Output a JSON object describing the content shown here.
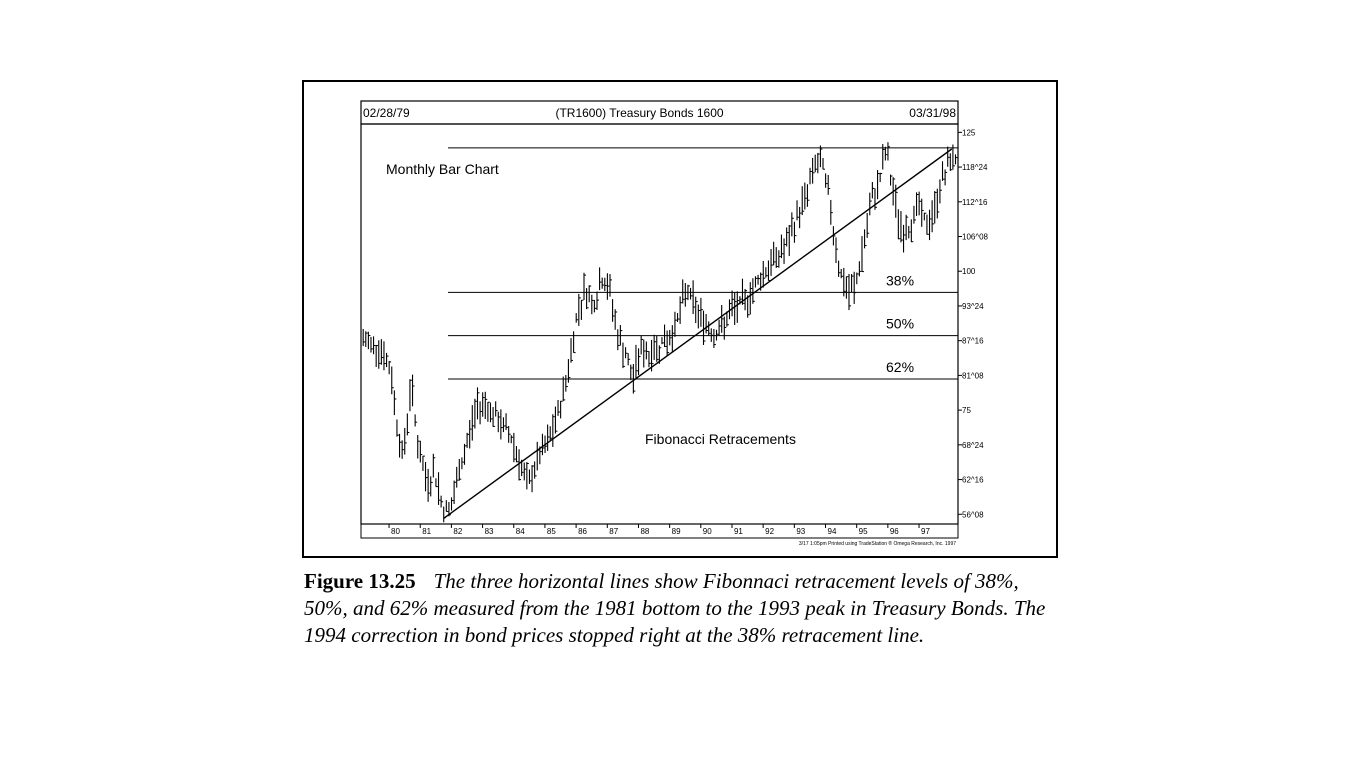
{
  "chart_data": {
    "type": "bar",
    "title": "(TR1600) Treasury Bonds 1600",
    "start_date_label": "02/28/79",
    "end_date_label": "03/31/98",
    "annotations": {
      "chart_type_label": "Monthly Bar Chart",
      "retracement_label": "Fibonacci Retracements",
      "footer_note": "3/17 1:05pm Printed using TradeStation ® Omega Research, Inc. 1997"
    },
    "x_tick_labels": [
      "80",
      "81",
      "82",
      "83",
      "84",
      "85",
      "86",
      "87",
      "88",
      "89",
      "90",
      "91",
      "92",
      "93",
      "94",
      "95",
      "96",
      "97"
    ],
    "y_tick_labels": [
      {
        "value": 125,
        "label": "125"
      },
      {
        "value": 118.75,
        "label": "118^24"
      },
      {
        "value": 112.5,
        "label": "112^16"
      },
      {
        "value": 106.25,
        "label": "106^08"
      },
      {
        "value": 100,
        "label": "100"
      },
      {
        "value": 93.75,
        "label": "93^24"
      },
      {
        "value": 87.5,
        "label": "87^16"
      },
      {
        "value": 81.25,
        "label": "81^08"
      },
      {
        "value": 75,
        "label": "75"
      },
      {
        "value": 68.75,
        "label": "68^24"
      },
      {
        "value": 62.5,
        "label": "62^16"
      },
      {
        "value": 56.25,
        "label": "56^08"
      }
    ],
    "ylim": [
      54.5,
      126.5
    ],
    "xlim": [
      1979.1,
      1998.25
    ],
    "price_anchors": [
      [
        1979.15,
        87.5
      ],
      [
        1979.7,
        86.5
      ],
      [
        1980.05,
        82
      ],
      [
        1980.25,
        73
      ],
      [
        1980.45,
        66
      ],
      [
        1980.7,
        80
      ],
      [
        1980.95,
        68
      ],
      [
        1981.2,
        62
      ],
      [
        1981.45,
        64
      ],
      [
        1981.75,
        57
      ],
      [
        1982.0,
        57.5
      ],
      [
        1982.25,
        64
      ],
      [
        1982.5,
        69
      ],
      [
        1982.8,
        75.5
      ],
      [
        1983.1,
        76.5
      ],
      [
        1983.35,
        74
      ],
      [
        1983.65,
        72
      ],
      [
        1983.9,
        70.5
      ],
      [
        1984.15,
        66.5
      ],
      [
        1984.45,
        61
      ],
      [
        1984.75,
        66
      ],
      [
        1985.05,
        68.5
      ],
      [
        1985.3,
        72
      ],
      [
        1985.55,
        77
      ],
      [
        1985.8,
        84
      ],
      [
        1986.05,
        93
      ],
      [
        1986.3,
        97
      ],
      [
        1986.55,
        94
      ],
      [
        1986.85,
        99
      ],
      [
        1987.1,
        96
      ],
      [
        1987.35,
        88
      ],
      [
        1987.6,
        85
      ],
      [
        1987.8,
        80
      ],
      [
        1988.05,
        86
      ],
      [
        1988.35,
        85
      ],
      [
        1988.7,
        87
      ],
      [
        1989.0,
        88
      ],
      [
        1989.3,
        92
      ],
      [
        1989.55,
        97
      ],
      [
        1989.85,
        93
      ],
      [
        1990.1,
        91
      ],
      [
        1990.4,
        89
      ],
      [
        1990.7,
        90
      ],
      [
        1991.0,
        93
      ],
      [
        1991.3,
        94
      ],
      [
        1991.6,
        96
      ],
      [
        1991.9,
        99
      ],
      [
        1992.2,
        101
      ],
      [
        1992.5,
        103
      ],
      [
        1992.8,
        105
      ],
      [
        1993.1,
        110
      ],
      [
        1993.4,
        114
      ],
      [
        1993.7,
        120
      ],
      [
        1993.95,
        118
      ],
      [
        1994.2,
        110
      ],
      [
        1994.45,
        100
      ],
      [
        1994.7,
        96
      ],
      [
        1994.95,
        97
      ],
      [
        1995.2,
        104
      ],
      [
        1995.5,
        113
      ],
      [
        1995.75,
        117
      ],
      [
        1995.95,
        122
      ],
      [
        1996.2,
        113
      ],
      [
        1996.45,
        107
      ],
      [
        1996.7,
        108
      ],
      [
        1996.95,
        112
      ],
      [
        1997.25,
        108
      ],
      [
        1997.5,
        111
      ],
      [
        1997.75,
        117
      ],
      [
        1997.95,
        119
      ],
      [
        1998.1,
        121
      ],
      [
        1998.2,
        120
      ]
    ],
    "trendline": {
      "from": [
        1981.75,
        55.5
      ],
      "to": [
        1998.05,
        122
      ]
    },
    "top_line": 122.2,
    "retracements": [
      {
        "label": "38%",
        "value": 96.2
      },
      {
        "label": "50%",
        "value": 88.4
      },
      {
        "label": "62%",
        "value": 80.6
      }
    ],
    "grid": false,
    "legend": "none"
  },
  "caption": {
    "figure_number": "Figure 13.25",
    "text": "The three horizontal lines show Fibonnaci retracement levels of 38%, 50%, and 62% measured from the 1981 bottom to the 1993 peak in Treasury Bonds. The 1994 correction in bond prices stopped right at the 38% retracement line."
  }
}
